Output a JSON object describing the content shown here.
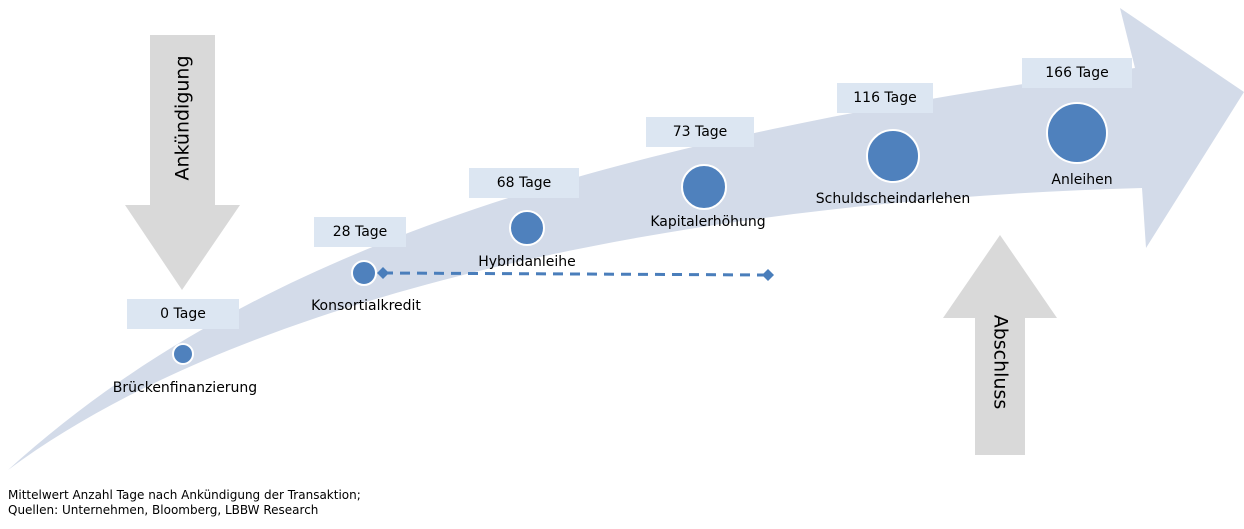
{
  "arrows": {
    "announcement": "Ankündigung",
    "closing": "Abschluss"
  },
  "nodes": [
    {
      "label": "Brückenfinanzierung",
      "days": "0 Tage"
    },
    {
      "label": "Konsortialkredit",
      "days": "28 Tage"
    },
    {
      "label": "Hybridanleihe",
      "days": "68 Tage"
    },
    {
      "label": "Kapitalerhöhung",
      "days": "73 Tage"
    },
    {
      "label": "Schuldscheindarlehen",
      "days": "116 Tage"
    },
    {
      "label": "Anleihen",
      "days": "166 Tage"
    }
  ],
  "footnote": [
    "Mittelwert Anzahl Tage nach Ankündigung der Transaktion;",
    "Quellen: Unternehmen, Bloomberg, LBBW Research"
  ]
}
